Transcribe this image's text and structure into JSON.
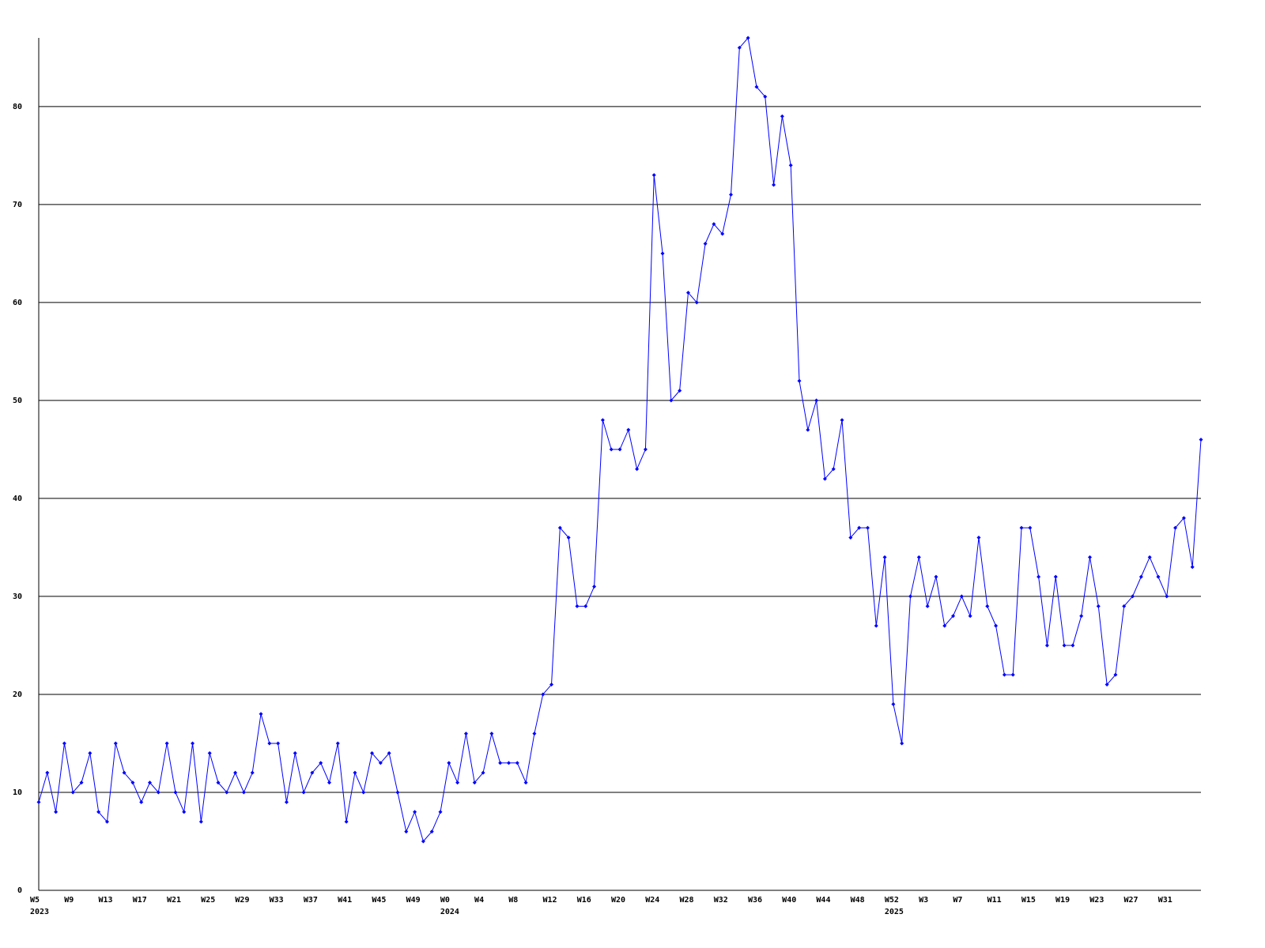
{
  "chart_data": {
    "type": "line",
    "categories": [
      "W5",
      null,
      null,
      null,
      "W9",
      null,
      null,
      null,
      "W13",
      null,
      null,
      null,
      "W17",
      null,
      null,
      null,
      "W21",
      null,
      null,
      null,
      "W25",
      null,
      null,
      null,
      "W29",
      null,
      null,
      null,
      "W33",
      null,
      null,
      null,
      "W37",
      null,
      null,
      null,
      "W41",
      null,
      null,
      null,
      "W45",
      null,
      null,
      null,
      "W49",
      null,
      null,
      null,
      "W0",
      null,
      null,
      null,
      "W4",
      null,
      null,
      null,
      "W8",
      null,
      null,
      null,
      "W12",
      null,
      null,
      null,
      "W16",
      null,
      null,
      null,
      "W20",
      null,
      null,
      null,
      "W24",
      null,
      null,
      null,
      "W28",
      null,
      null,
      null,
      "W32",
      null,
      null,
      null,
      "W36",
      null,
      null,
      null,
      "W40",
      null,
      null,
      null,
      "W44",
      null,
      null,
      null,
      "W48",
      null,
      null,
      null,
      "W52",
      null,
      null,
      null,
      "W3",
      null,
      null,
      null,
      "W7",
      null,
      null,
      null,
      "W11",
      null,
      null,
      null,
      "W15",
      null,
      null,
      null,
      "W19",
      null,
      null,
      null,
      "W23",
      null,
      null,
      null,
      "W27",
      null,
      null,
      null,
      "W31",
      null,
      null,
      null,
      null
    ],
    "years": [
      "2023",
      null,
      null,
      null,
      null,
      null,
      null,
      null,
      null,
      null,
      null,
      null,
      null,
      null,
      null,
      null,
      null,
      null,
      null,
      null,
      null,
      null,
      null,
      null,
      null,
      null,
      null,
      null,
      null,
      null,
      null,
      null,
      null,
      null,
      null,
      null,
      null,
      null,
      null,
      null,
      null,
      null,
      null,
      null,
      null,
      null,
      null,
      null,
      "2024",
      null,
      null,
      null,
      null,
      null,
      null,
      null,
      null,
      null,
      null,
      null,
      null,
      null,
      null,
      null,
      null,
      null,
      null,
      null,
      null,
      null,
      null,
      null,
      null,
      null,
      null,
      null,
      null,
      null,
      null,
      null,
      null,
      null,
      null,
      null,
      null,
      null,
      null,
      null,
      null,
      null,
      null,
      null,
      null,
      null,
      null,
      null,
      null,
      null,
      null,
      null,
      "2025",
      null,
      null,
      null,
      null,
      null,
      null,
      null,
      null,
      null,
      null,
      null,
      null,
      null,
      null,
      null,
      null,
      null,
      null,
      null,
      null,
      null,
      null,
      null,
      null,
      null,
      null,
      null,
      null,
      null,
      null,
      null,
      null,
      null,
      null,
      null,
      null
    ],
    "values": [
      9,
      12,
      8,
      15,
      10,
      11,
      14,
      8,
      7,
      15,
      12,
      11,
      9,
      11,
      10,
      15,
      10,
      8,
      15,
      7,
      14,
      11,
      10,
      12,
      10,
      12,
      18,
      15,
      15,
      9,
      14,
      10,
      12,
      13,
      11,
      15,
      7,
      12,
      10,
      14,
      13,
      14,
      10,
      6,
      8,
      5,
      6,
      8,
      13,
      11,
      16,
      11,
      12,
      16,
      13,
      13,
      13,
      11,
      16,
      20,
      21,
      37,
      36,
      29,
      29,
      31,
      48,
      45,
      45,
      47,
      43,
      45,
      73,
      65,
      50,
      51,
      61,
      60,
      66,
      68,
      67,
      71,
      86,
      87,
      82,
      81,
      72,
      79,
      74,
      52,
      47,
      50,
      42,
      43,
      48,
      36,
      37,
      37,
      27,
      34,
      19,
      15,
      30,
      34,
      29,
      32,
      27,
      28,
      30,
      28,
      36,
      29,
      27,
      22,
      22,
      37,
      37,
      32,
      25,
      32,
      25,
      25,
      28,
      34,
      29,
      21,
      22,
      29,
      30,
      32,
      34,
      32,
      30,
      37,
      38,
      33,
      46
    ],
    "color": "#0000ff",
    "ylim": [
      0,
      87
    ],
    "yticks": [
      0,
      10,
      20,
      30,
      40,
      50,
      60,
      70,
      80
    ],
    "grid": true
  }
}
